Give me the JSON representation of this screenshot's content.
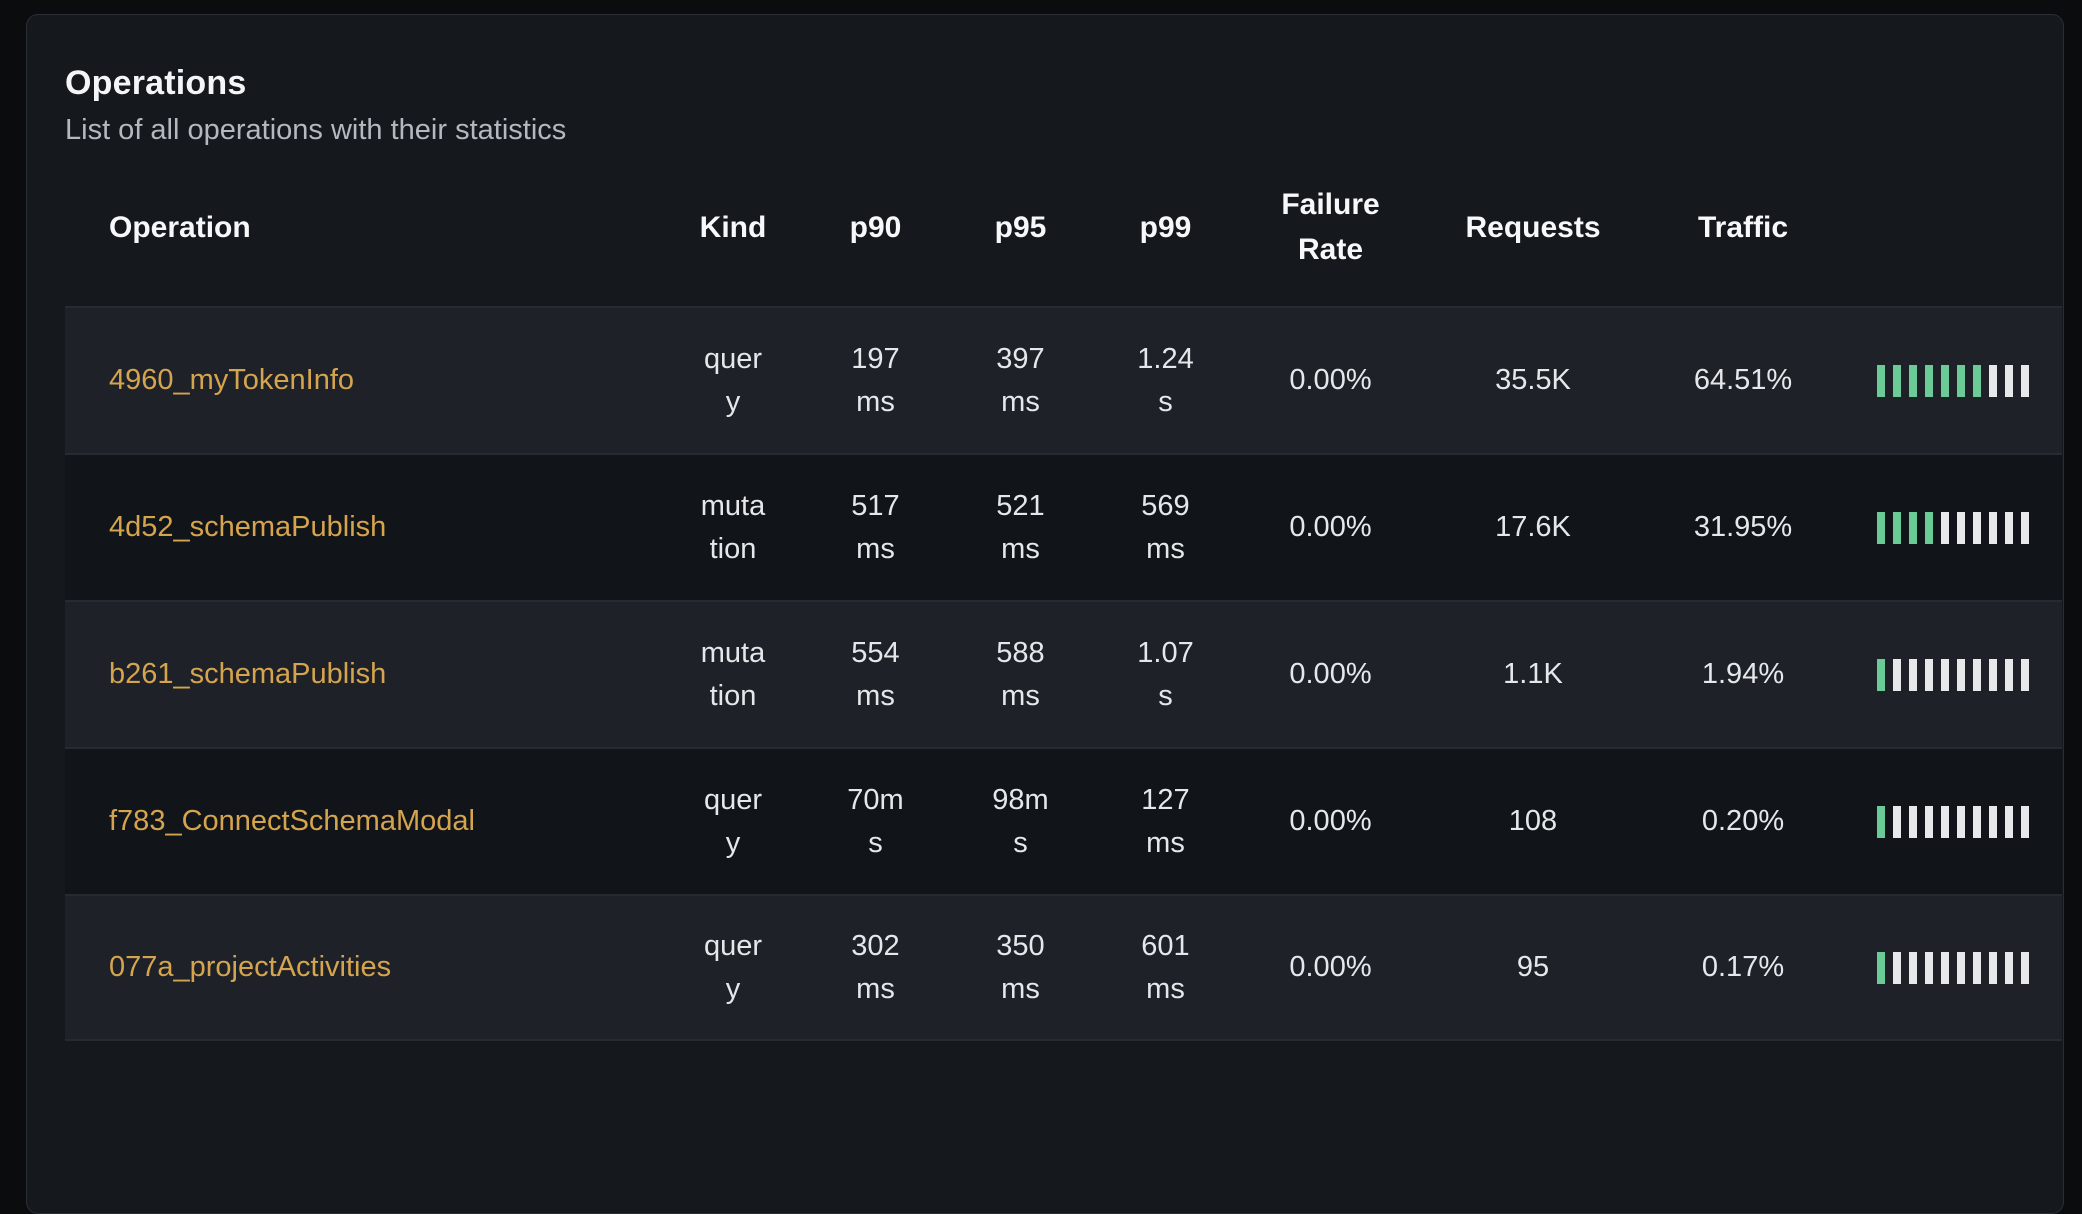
{
  "card": {
    "title": "Operations",
    "subtitle": "List of all operations with their statistics"
  },
  "table": {
    "columns": [
      {
        "key": "operation",
        "label": "Operation"
      },
      {
        "key": "kind",
        "label": "Kind"
      },
      {
        "key": "p90",
        "label": "p90"
      },
      {
        "key": "p95",
        "label": "p95"
      },
      {
        "key": "p99",
        "label": "p99"
      },
      {
        "key": "failure_rate",
        "label": "Failure Rate"
      },
      {
        "key": "requests",
        "label": "Requests"
      },
      {
        "key": "traffic",
        "label": "Traffic"
      },
      {
        "key": "traffic_bar",
        "label": ""
      }
    ],
    "rows": [
      {
        "operation": "4960_myTokenInfo",
        "kind": "query",
        "p90": "197 ms",
        "p95": "397 ms",
        "p99": "1.24 s",
        "failure_rate": "0.00%",
        "requests": "35.5K",
        "traffic": "64.51%",
        "traffic_bar": {
          "filled": 7,
          "total": 10
        }
      },
      {
        "operation": "4d52_schemaPublish",
        "kind": "mutation",
        "p90": "517 ms",
        "p95": "521 ms",
        "p99": "569 ms",
        "failure_rate": "0.00%",
        "requests": "17.6K",
        "traffic": "31.95%",
        "traffic_bar": {
          "filled": 4,
          "total": 10
        }
      },
      {
        "operation": "b261_schemaPublish",
        "kind": "mutation",
        "p90": "554 ms",
        "p95": "588 ms",
        "p99": "1.07 s",
        "failure_rate": "0.00%",
        "requests": "1.1K",
        "traffic": "1.94%",
        "traffic_bar": {
          "filled": 1,
          "total": 10
        }
      },
      {
        "operation": "f783_ConnectSchemaModal",
        "kind": "query",
        "p90": "70ms",
        "p95": "98ms",
        "p99": "127 ms",
        "failure_rate": "0.00%",
        "requests": "108",
        "traffic": "0.20%",
        "traffic_bar": {
          "filled": 1,
          "total": 10
        }
      },
      {
        "operation": "077a_projectActivities",
        "kind": "query",
        "p90": "302 ms",
        "p95": "350 ms",
        "p99": "601 ms",
        "failure_rate": "0.00%",
        "requests": "95",
        "traffic": "0.17%",
        "traffic_bar": {
          "filled": 1,
          "total": 10
        }
      }
    ]
  },
  "colors": {
    "operation_link": "#d5a44e",
    "traffic_bar_filled": "#6bcb97",
    "traffic_bar_empty": "#e6e8e9",
    "row_stripe_light": "#1e2127",
    "row_stripe_dark": "#111419",
    "card_background": "#15181d",
    "page_background": "#0a0c0e"
  }
}
